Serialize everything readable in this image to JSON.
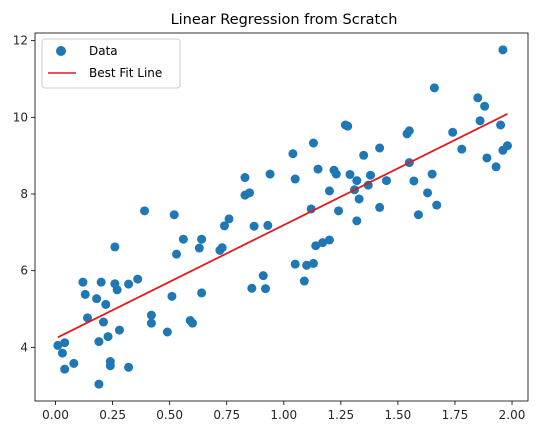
{
  "chart_data": {
    "type": "scatter",
    "title": "Linear Regression from Scratch",
    "xlabel": "",
    "ylabel": "",
    "xlim": [
      -0.09,
      2.07
    ],
    "ylim": [
      2.6,
      12.2
    ],
    "x_ticks": [
      "0.00",
      "0.25",
      "0.50",
      "0.75",
      "1.00",
      "1.25",
      "1.50",
      "1.75",
      "2.00"
    ],
    "y_ticks": [
      "4",
      "6",
      "8",
      "10",
      "12"
    ],
    "x_tick_values": [
      0,
      0.25,
      0.5,
      0.75,
      1.0,
      1.25,
      1.5,
      1.75,
      2.0
    ],
    "y_tick_values": [
      4,
      6,
      8,
      10,
      12
    ],
    "grid": false,
    "legend_position": "top-left",
    "series": [
      {
        "name": "Data",
        "kind": "scatter",
        "color": "#1f77b4",
        "points": [
          [
            0.01,
            4.05
          ],
          [
            0.03,
            3.85
          ],
          [
            0.04,
            3.43
          ],
          [
            0.04,
            4.12
          ],
          [
            0.08,
            3.58
          ],
          [
            0.12,
            5.7
          ],
          [
            0.13,
            5.38
          ],
          [
            0.14,
            4.77
          ],
          [
            0.18,
            5.27
          ],
          [
            0.19,
            3.04
          ],
          [
            0.19,
            4.15
          ],
          [
            0.2,
            5.7
          ],
          [
            0.21,
            4.66
          ],
          [
            0.22,
            5.12
          ],
          [
            0.23,
            4.28
          ],
          [
            0.24,
            3.52
          ],
          [
            0.24,
            3.63
          ],
          [
            0.26,
            6.62
          ],
          [
            0.26,
            5.66
          ],
          [
            0.27,
            5.5
          ],
          [
            0.28,
            4.45
          ],
          [
            0.32,
            3.48
          ],
          [
            0.32,
            5.65
          ],
          [
            0.36,
            5.78
          ],
          [
            0.39,
            7.56
          ],
          [
            0.42,
            4.63
          ],
          [
            0.42,
            4.84
          ],
          [
            0.49,
            4.4
          ],
          [
            0.51,
            5.33
          ],
          [
            0.52,
            7.46
          ],
          [
            0.53,
            6.43
          ],
          [
            0.56,
            6.82
          ],
          [
            0.59,
            4.7
          ],
          [
            0.6,
            4.63
          ],
          [
            0.63,
            6.59
          ],
          [
            0.64,
            5.42
          ],
          [
            0.64,
            6.82
          ],
          [
            0.72,
            6.53
          ],
          [
            0.73,
            6.6
          ],
          [
            0.74,
            7.17
          ],
          [
            0.76,
            7.35
          ],
          [
            0.83,
            8.43
          ],
          [
            0.83,
            7.97
          ],
          [
            0.85,
            8.03
          ],
          [
            0.86,
            5.54
          ],
          [
            0.87,
            7.16
          ],
          [
            0.91,
            5.87
          ],
          [
            0.92,
            5.53
          ],
          [
            0.93,
            7.18
          ],
          [
            0.94,
            8.52
          ],
          [
            1.04,
            9.05
          ],
          [
            1.05,
            6.17
          ],
          [
            1.05,
            8.39
          ],
          [
            1.09,
            5.73
          ],
          [
            1.1,
            6.14
          ],
          [
            1.12,
            7.61
          ],
          [
            1.13,
            9.33
          ],
          [
            1.13,
            6.19
          ],
          [
            1.14,
            6.65
          ],
          [
            1.15,
            8.65
          ],
          [
            1.17,
            6.73
          ],
          [
            1.2,
            6.8
          ],
          [
            1.2,
            8.08
          ],
          [
            1.22,
            8.62
          ],
          [
            1.23,
            8.52
          ],
          [
            1.24,
            7.56
          ],
          [
            1.27,
            9.8
          ],
          [
            1.28,
            9.77
          ],
          [
            1.29,
            8.51
          ],
          [
            1.31,
            8.11
          ],
          [
            1.32,
            8.35
          ],
          [
            1.32,
            7.3
          ],
          [
            1.33,
            7.87
          ],
          [
            1.35,
            9.01
          ],
          [
            1.37,
            8.23
          ],
          [
            1.38,
            8.49
          ],
          [
            1.42,
            9.2
          ],
          [
            1.42,
            7.65
          ],
          [
            1.45,
            8.35
          ],
          [
            1.54,
            9.57
          ],
          [
            1.55,
            9.65
          ],
          [
            1.55,
            8.82
          ],
          [
            1.57,
            8.34
          ],
          [
            1.59,
            7.46
          ],
          [
            1.63,
            8.03
          ],
          [
            1.65,
            8.52
          ],
          [
            1.66,
            10.77
          ],
          [
            1.67,
            7.71
          ],
          [
            1.74,
            9.61
          ],
          [
            1.78,
            9.17
          ],
          [
            1.85,
            10.51
          ],
          [
            1.86,
            9.91
          ],
          [
            1.88,
            10.29
          ],
          [
            1.89,
            8.94
          ],
          [
            1.93,
            8.71
          ],
          [
            1.95,
            9.8
          ],
          [
            1.96,
            9.14
          ],
          [
            1.96,
            11.76
          ],
          [
            1.98,
            9.26
          ]
        ]
      },
      {
        "name": "Best Fit Line",
        "kind": "line",
        "color": "#e31a1c",
        "x": [
          0.01,
          1.98
        ],
        "y": [
          4.26,
          10.09
        ]
      }
    ]
  }
}
